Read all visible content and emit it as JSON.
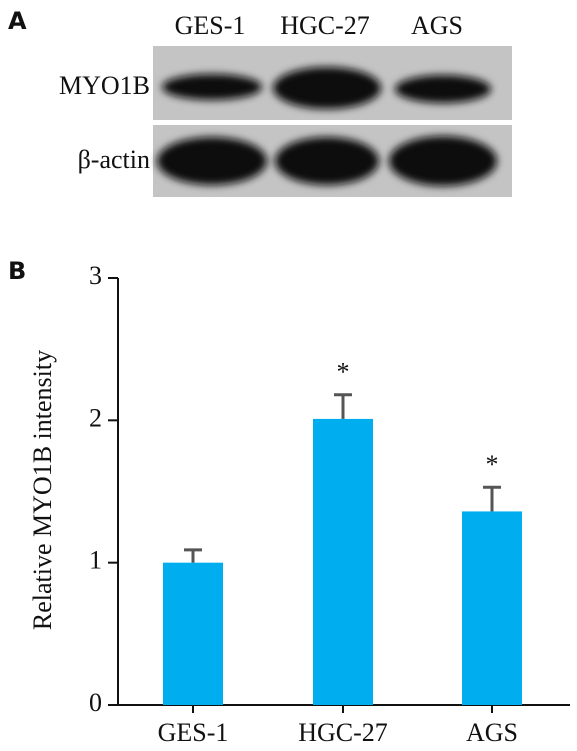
{
  "blot": {
    "panel_label": "A",
    "lanes": [
      "GES-1",
      "HGC-27",
      "AGS"
    ],
    "rows": [
      "MYO1B",
      "β-actin"
    ]
  },
  "chart_data": {
    "type": "bar",
    "panel_label": "B",
    "y_label": "Relative MYO1B intensity",
    "categories": [
      "GES-1",
      "HGC-27",
      "AGS"
    ],
    "values": [
      1.0,
      2.01,
      1.36
    ],
    "errors": [
      0.09,
      0.17,
      0.17
    ],
    "annotations": [
      null,
      "*",
      "*"
    ],
    "color": "#00aeef",
    "error_color": "#555555",
    "ylim": [
      0,
      3
    ],
    "yticks": [
      0,
      1,
      2,
      3
    ]
  }
}
